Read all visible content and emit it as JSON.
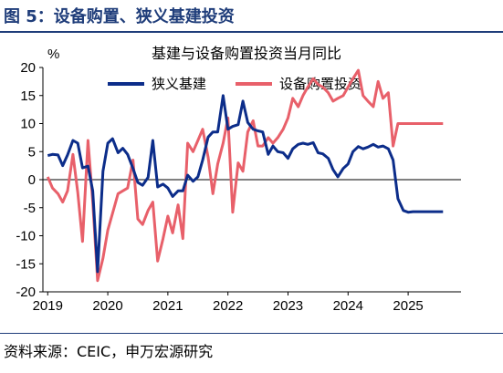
{
  "figure": {
    "title": "图 5：设备购置、狭义基建投资",
    "source": "资料来源：CEIC，申万宏源研究"
  },
  "colors": {
    "infra": "#0c2d8a",
    "equip": "#e8606a",
    "rule": "#1f3d7a"
  },
  "chart_data": {
    "type": "line",
    "title": "基建与设备购置投资当月同比",
    "ylabel": "%",
    "ylim": [
      -20,
      20
    ],
    "xlim": [
      2018.92,
      2025.88
    ],
    "yticks": [
      "20",
      "15",
      "10",
      "5",
      "0",
      "-5",
      "-10",
      "-15",
      "-20"
    ],
    "xticks": [
      "2019",
      "2020",
      "2021",
      "2022",
      "2023",
      "2024",
      "2025"
    ],
    "legend": {
      "position": "top-center",
      "entries": [
        "狭义基建",
        "设备购置投资"
      ]
    },
    "grid": false,
    "series": [
      {
        "name": "狭义基建",
        "x": [
          2019.0,
          2019.08,
          2019.17,
          2019.25,
          2019.33,
          2019.42,
          2019.5,
          2019.58,
          2019.67,
          2019.75,
          2019.83,
          2019.92,
          2020.0,
          2020.08,
          2020.17,
          2020.25,
          2020.33,
          2020.42,
          2020.5,
          2020.58,
          2020.67,
          2020.75,
          2020.83,
          2020.92,
          2021.0,
          2021.08,
          2021.17,
          2021.25,
          2021.33,
          2021.42,
          2021.5,
          2021.58,
          2021.67,
          2021.75,
          2021.83,
          2021.92,
          2022.0,
          2022.08,
          2022.17,
          2022.25,
          2022.33,
          2022.42,
          2022.5,
          2022.58,
          2022.67,
          2022.75,
          2022.83,
          2022.92,
          2023.0,
          2023.08,
          2023.17,
          2023.25,
          2023.33,
          2023.42,
          2023.5,
          2023.58,
          2023.67,
          2023.75,
          2023.83,
          2023.92,
          2024.0,
          2024.08,
          2024.17,
          2024.25,
          2024.33,
          2024.42,
          2024.5,
          2024.58,
          2024.67,
          2024.75,
          2024.83,
          2024.92,
          2025.0,
          2025.08,
          2025.17,
          2025.25,
          2025.33,
          2025.42,
          2025.5,
          2025.58
        ],
        "y": [
          4.3,
          4.5,
          4.4,
          2.5,
          4.4,
          7.0,
          6.5,
          2.1,
          2.4,
          -2.0,
          -16.4,
          1.5,
          6.5,
          7.3,
          4.8,
          5.6,
          4.5,
          2.0,
          -0.5,
          -1.0,
          0.4,
          7.0,
          -1.3,
          -0.8,
          -1.5,
          -3.0,
          -2.0,
          -2.0,
          0.8,
          -0.3,
          0.5,
          3.5,
          7.6,
          8.5,
          8.5,
          15.0,
          9.0,
          9.5,
          9.8,
          14.0,
          10.2,
          9.0,
          8.7,
          8.5,
          4.5,
          6.0,
          5.0,
          4.8,
          3.8,
          5.5,
          6.3,
          6.5,
          6.3,
          6.6,
          4.8,
          4.6,
          3.8,
          1.8,
          0.5,
          2.0,
          2.8,
          5.0,
          5.9,
          5.5,
          5.8,
          6.3,
          5.8,
          6.0,
          5.5,
          3.5,
          -3.4,
          -5.5,
          -5.8,
          -5.7,
          -5.7,
          -5.7,
          -5.7,
          -5.7,
          -5.7,
          -5.7
        ]
      },
      {
        "name": "设备购置投资",
        "x": [
          2019.0,
          2019.08,
          2019.17,
          2019.25,
          2019.33,
          2019.42,
          2019.5,
          2019.58,
          2019.67,
          2019.75,
          2019.83,
          2019.92,
          2020.0,
          2020.08,
          2020.17,
          2020.25,
          2020.33,
          2020.42,
          2020.5,
          2020.58,
          2020.67,
          2020.75,
          2020.83,
          2020.92,
          2021.0,
          2021.08,
          2021.17,
          2021.25,
          2021.33,
          2021.42,
          2021.5,
          2021.58,
          2021.67,
          2021.75,
          2021.83,
          2021.92,
          2022.0,
          2022.08,
          2022.17,
          2022.25,
          2022.33,
          2022.42,
          2022.5,
          2022.58,
          2022.67,
          2022.75,
          2022.83,
          2022.92,
          2023.0,
          2023.08,
          2023.17,
          2023.25,
          2023.33,
          2023.42,
          2023.5,
          2023.58,
          2023.67,
          2023.75,
          2023.83,
          2023.92,
          2024.0,
          2024.08,
          2024.17,
          2024.25,
          2024.33,
          2024.42,
          2024.5,
          2024.58,
          2024.67,
          2024.75,
          2024.83,
          2024.92,
          2025.0,
          2025.08,
          2025.17,
          2025.25,
          2025.33,
          2025.42,
          2025.5,
          2025.58
        ],
        "y": [
          0.5,
          -1.5,
          -2.5,
          -4.0,
          -2.0,
          4.5,
          -2.3,
          -11.0,
          7.0,
          -4.0,
          -18.0,
          -14.0,
          -9.0,
          -6.0,
          -2.5,
          -2.0,
          -1.5,
          3.5,
          -7.0,
          -8.0,
          -5.5,
          -4.0,
          -14.5,
          -10.5,
          -6.5,
          -9.5,
          -4.5,
          -10.5,
          6.5,
          5.0,
          7.0,
          9.0,
          4.0,
          -2.5,
          2.8,
          6.5,
          11.0,
          -5.8,
          3.0,
          1.5,
          8.5,
          10.5,
          6.0,
          6.0,
          7.5,
          6.5,
          7.5,
          9.0,
          11.0,
          14.5,
          13.0,
          15.0,
          16.5,
          18.0,
          17.0,
          16.5,
          15.5,
          14.0,
          14.5,
          15.0,
          16.5,
          18.0,
          19.5,
          15.0,
          14.0,
          13.0,
          17.5,
          14.5,
          15.5,
          6.0,
          10.0,
          10.0,
          10.0,
          10.0,
          10.0,
          10.0,
          10.0,
          10.0,
          10.0,
          10.0
        ]
      }
    ]
  }
}
